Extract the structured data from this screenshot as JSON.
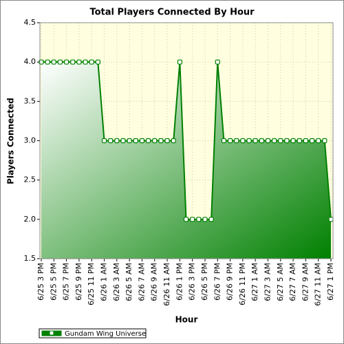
{
  "chart_data": {
    "type": "area",
    "title": "Total Players Connected By Hour",
    "x_label": "Hour",
    "y_label": "Players Connected",
    "categories": [
      "6/25 3 PM",
      null,
      "6/25 5 PM",
      null,
      "6/25 7 PM",
      null,
      "6/25 9 PM",
      null,
      "6/25 11 PM",
      null,
      "6/26 1 AM",
      null,
      "6/26 3 AM",
      null,
      "6/26 5 AM",
      null,
      "6/26 7 AM",
      null,
      "6/26 9 AM",
      null,
      "6/26 11 AM",
      null,
      "6/26 1 PM",
      null,
      "6/26 3 PM",
      null,
      "6/26 5 PM",
      null,
      "6/26 7 PM",
      null,
      "6/26 9 PM",
      null,
      "6/26 11 PM",
      null,
      "6/27 1 AM",
      null,
      "6/27 3 AM",
      null,
      "6/27 5 AM",
      null,
      "6/27 7 AM",
      null,
      "6/27 9 AM",
      null,
      "6/27 11 AM",
      null,
      "6/27 1 PM"
    ],
    "series": [
      {
        "name": "Gundam Wing Universe",
        "color": "#008000",
        "values": [
          4,
          4,
          4,
          4,
          4,
          4,
          4,
          4,
          4,
          4,
          3,
          3,
          3,
          3,
          3,
          3,
          3,
          3,
          3,
          3,
          3,
          3,
          4,
          2,
          2,
          2,
          2,
          2,
          4,
          3,
          3,
          3,
          3,
          3,
          3,
          3,
          3,
          3,
          3,
          3,
          3,
          3,
          3,
          3,
          3,
          3,
          2
        ]
      }
    ],
    "ylim": [
      1.5,
      4.5
    ],
    "yticks": [
      1.5,
      {
        "value": 2,
        "label": "2.0"
      },
      2.5,
      {
        "value": 3,
        "label": "3.0"
      },
      3.5,
      {
        "value": 4,
        "label": "4.0"
      },
      4.5
    ],
    "grid": true,
    "plot_background": "#ffffe0",
    "legend": "bottom-left"
  }
}
